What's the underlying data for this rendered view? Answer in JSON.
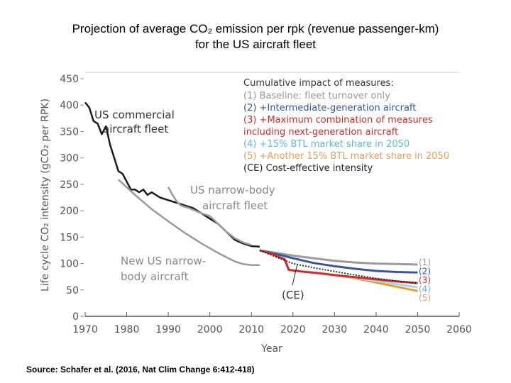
{
  "title_line1": "Projection of average CO₂ emission per rpk (revenue passenger-km)",
  "title_line2": "for the US aircraft fleet",
  "source": "Source: Schafer et al. (2016, Nat Clim Change 6:412-418)",
  "chart_data": {
    "type": "line",
    "xlabel": "Year",
    "ylabel": "Life cycle CO₂ intensity (gCO₂ per RPK)",
    "xlim": [
      1970,
      2060
    ],
    "ylim": [
      0,
      450
    ],
    "xticks": [
      1970,
      1980,
      1990,
      2000,
      2010,
      2020,
      2030,
      2040,
      2050,
      2060
    ],
    "yticks": [
      0,
      50,
      100,
      150,
      200,
      250,
      300,
      350,
      400,
      450
    ],
    "grid": false,
    "legend_title": "Cumulative impact of measures:",
    "legend": [
      "(1) Baseline: fleet turnover only",
      "(2) +Intermediate-generation aircraft",
      "(3) +Maximum combination of measures",
      "including next-generation aircraft",
      "(4) +15% BTL market share in 2050",
      "(5) +Another 15% BTL market share in 2050",
      "(CE) Cost-effective intensity"
    ],
    "legend_colors": [
      "#999999",
      "#3a55a0",
      "#d42a2a",
      "#d42a2a",
      "#5fb8d8",
      "#e0a060",
      "#222222"
    ],
    "annotations": [
      "US commercial",
      "aircraft fleet",
      "US narrow-body",
      "aircraft fleet",
      "New US narrow-",
      "body aircraft",
      "(CE)"
    ],
    "end_labels": [
      "(1)",
      "(2)",
      "(3)",
      "(4)",
      "(5)"
    ],
    "series": [
      {
        "id": "us-commercial",
        "color": "#1a1a1a",
        "width": 2.5,
        "x": [
          1970,
          1971,
          1972,
          1973,
          1974,
          1975,
          1976,
          1977,
          1978,
          1979,
          1980,
          1981,
          1982,
          1983,
          1984,
          1985,
          1986,
          1988,
          1990,
          1992,
          1994,
          1996,
          1998,
          2000,
          2002,
          2004,
          2006,
          2008,
          2010,
          2012
        ],
        "y": [
          405,
          395,
          370,
          365,
          345,
          360,
          325,
          300,
          275,
          270,
          255,
          240,
          240,
          235,
          240,
          230,
          235,
          225,
          220,
          215,
          210,
          205,
          195,
          185,
          175,
          160,
          145,
          138,
          133,
          132
        ]
      },
      {
        "id": "us-narrow-body",
        "color": "#9a9a9a",
        "width": 2.5,
        "x": [
          1990,
          1991,
          1992,
          1993,
          1995,
          1998,
          2000,
          2002,
          2004,
          2006,
          2008,
          2010
        ],
        "y": [
          245,
          230,
          218,
          210,
          205,
          195,
          190,
          175,
          160,
          148,
          140,
          135
        ]
      },
      {
        "id": "new-us-narrow-body",
        "color": "#9a9a9a",
        "width": 2.5,
        "x": [
          1978,
          1982,
          1986,
          1990,
          1994,
          1998,
          2002,
          2006,
          2008,
          2010,
          2012
        ],
        "y": [
          259,
          230,
          203,
          180,
          158,
          138,
          120,
          104,
          99,
          97,
          97
        ]
      },
      {
        "id": "1",
        "color": "#9a9a9a",
        "width": 3,
        "x": [
          2012,
          2016,
          2020,
          2025,
          2030,
          2035,
          2040,
          2045,
          2050
        ],
        "y": [
          125,
          120,
          115,
          110,
          105,
          102,
          100,
          99,
          98
        ]
      },
      {
        "id": "2",
        "color": "#3a55a0",
        "width": 3,
        "x": [
          2012,
          2016,
          2020,
          2025,
          2030,
          2035,
          2040,
          2045,
          2050
        ],
        "y": [
          125,
          118,
          110,
          101,
          95,
          90,
          86,
          84,
          83
        ]
      },
      {
        "id": "5",
        "color": "#e0a030",
        "width": 3,
        "x": [
          2012,
          2015,
          2018,
          2019,
          2022,
          2026,
          2030,
          2035,
          2040,
          2045,
          2050
        ],
        "y": [
          125,
          118,
          108,
          88,
          85,
          82,
          78,
          72,
          64,
          56,
          48
        ]
      },
      {
        "id": "4",
        "color": "#a8d8ea",
        "width": 3,
        "x": [
          2012,
          2015,
          2018,
          2019,
          2022,
          2026,
          2030,
          2035,
          2040,
          2045,
          2050
        ],
        "y": [
          125,
          118,
          108,
          88,
          85,
          82,
          78,
          73,
          67,
          61,
          55
        ]
      },
      {
        "id": "3",
        "color": "#d42a2a",
        "width": 3,
        "x": [
          2012,
          2015,
          2018,
          2019,
          2022,
          2026,
          2030,
          2035,
          2040,
          2045,
          2050
        ],
        "y": [
          125,
          118,
          108,
          88,
          85,
          82,
          78,
          74,
          70,
          66,
          63
        ]
      },
      {
        "id": "CE",
        "color": "#222222",
        "width": 1.8,
        "dash": "2,2",
        "x": [
          2012,
          2016,
          2020,
          2025,
          2030,
          2035,
          2040,
          2045,
          2050
        ],
        "y": [
          125,
          112,
          100,
          92,
          85,
          78,
          72,
          67,
          63
        ]
      }
    ]
  }
}
